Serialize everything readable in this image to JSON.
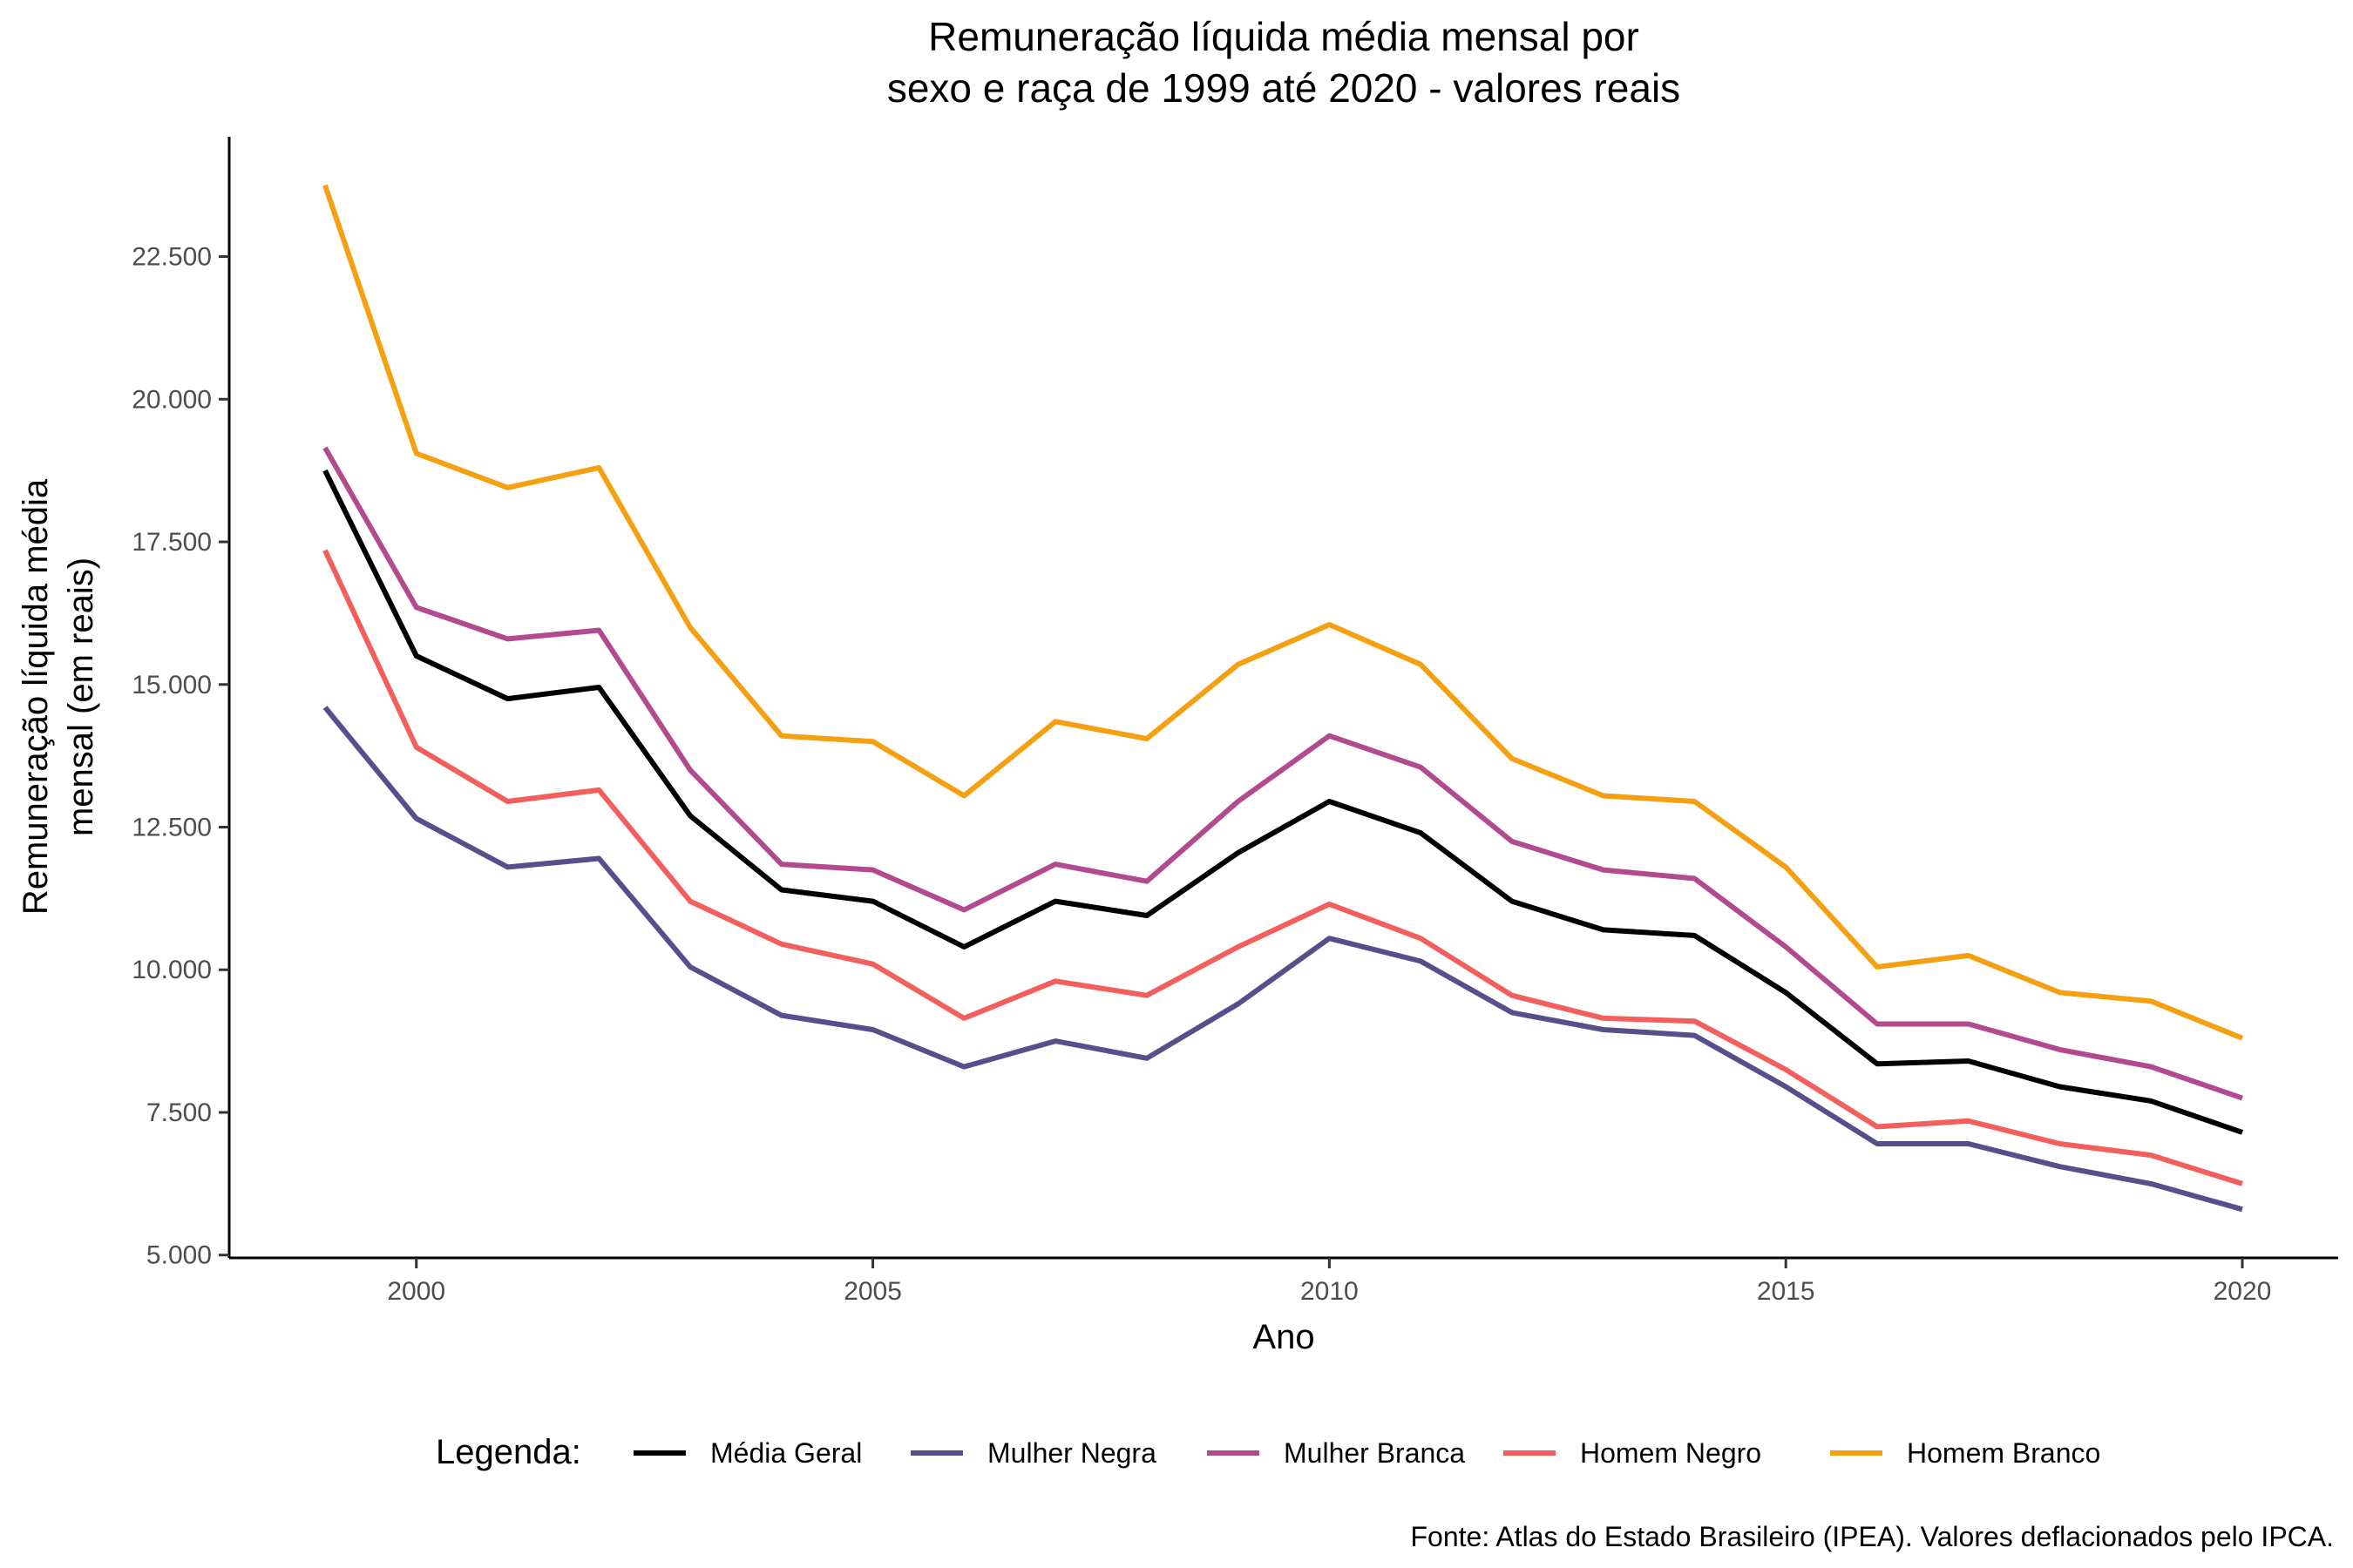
{
  "chart_data": {
    "type": "line",
    "title": [
      "Remuneração líquida média mensal por",
      "sexo e raça de 1999 até 2020 - valores reais"
    ],
    "xlabel": "Ano",
    "ylabel": [
      "Remuneração líquida média",
      "mensal (em reais)"
    ],
    "xlim": [
      1997.95,
      2021.05
    ],
    "ylim": [
      4950,
      24600
    ],
    "x_ticks": [
      2000,
      2005,
      2010,
      2015,
      2020
    ],
    "x_tick_labels": [
      "2000",
      "2005",
      "2010",
      "2015",
      "2020"
    ],
    "y_ticks": [
      5000,
      7500,
      10000,
      12500,
      15000,
      17500,
      20000,
      22500
    ],
    "y_tick_labels": [
      "5.000",
      "7.500",
      "10.000",
      "12.500",
      "15.000",
      "17.500",
      "20.000",
      "22.500"
    ],
    "grid": false,
    "legend_position": "bottom",
    "legend_title": "Legenda:",
    "x": [
      1999,
      2000,
      2001,
      2002,
      2003,
      2004,
      2005,
      2006,
      2007,
      2008,
      2009,
      2010,
      2011,
      2012,
      2013,
      2014,
      2015,
      2016,
      2017,
      2018,
      2019,
      2020
    ],
    "series": [
      {
        "name": "Média Geral",
        "color": "#000000",
        "values": [
          18750,
          15500,
          14750,
          14950,
          12700,
          11400,
          11200,
          10400,
          11200,
          10950,
          12050,
          12950,
          12400,
          11200,
          10700,
          10600,
          9600,
          8350,
          8400,
          7950,
          7700,
          7150
        ]
      },
      {
        "name": "Mulher Negra",
        "color": "#574e8c",
        "values": [
          14600,
          12650,
          11800,
          11950,
          10050,
          9200,
          8950,
          8300,
          8750,
          8450,
          9400,
          10550,
          10150,
          9250,
          8950,
          8850,
          7950,
          6950,
          6950,
          6550,
          6250,
          5800
        ]
      },
      {
        "name": "Mulher Branca",
        "color": "#b24a8f",
        "values": [
          19150,
          16350,
          15800,
          15950,
          13500,
          11850,
          11750,
          11050,
          11850,
          11550,
          12950,
          14100,
          13550,
          12250,
          11750,
          11600,
          10400,
          9050,
          9050,
          8600,
          8300,
          7750
        ]
      },
      {
        "name": "Homem Negro",
        "color": "#f25f5c",
        "values": [
          17350,
          13900,
          12950,
          13150,
          11200,
          10450,
          10100,
          9150,
          9800,
          9550,
          10400,
          11150,
          10550,
          9550,
          9150,
          9100,
          8250,
          7250,
          7350,
          6950,
          6750,
          6250
        ]
      },
      {
        "name": "Homem Branco",
        "color": "#f5a011",
        "values": [
          23750,
          19050,
          18450,
          18800,
          16000,
          14100,
          14000,
          13050,
          14350,
          14050,
          15350,
          16050,
          15350,
          13700,
          13050,
          12950,
          11800,
          10050,
          10250,
          9600,
          9450,
          8800
        ]
      }
    ],
    "caption": "Fonte: Atlas do Estado Brasileiro (IPEA). Valores deflacionados pelo IPCA."
  }
}
